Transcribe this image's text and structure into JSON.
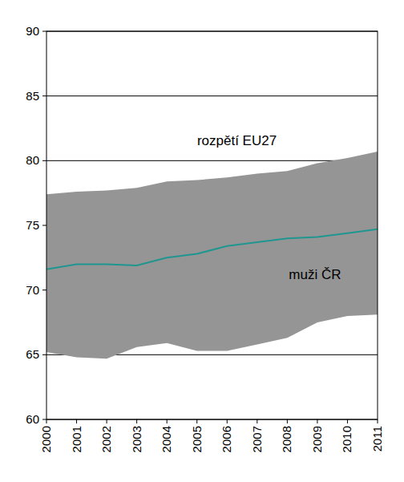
{
  "chart_data": {
    "type": "line",
    "x": [
      2000,
      2001,
      2002,
      2003,
      2004,
      2005,
      2006,
      2007,
      2008,
      2009,
      2010,
      2011
    ],
    "xlim": [
      2000,
      2011
    ],
    "xticks": [
      2000,
      2001,
      2002,
      2003,
      2004,
      2005,
      2006,
      2007,
      2008,
      2009,
      2010,
      2011
    ],
    "ylim": [
      60,
      90
    ],
    "yticks": [
      60,
      65,
      70,
      75,
      80,
      85,
      90
    ],
    "grid": true,
    "series": [
      {
        "name": "rozpětí EU27",
        "type": "area_range",
        "color": "#959595",
        "low": [
          65.2,
          64.8,
          64.7,
          65.6,
          65.9,
          65.3,
          65.3,
          65.8,
          66.3,
          67.5,
          68.0,
          68.1
        ],
        "high": [
          77.4,
          77.6,
          77.7,
          77.9,
          78.4,
          78.5,
          78.7,
          79.0,
          79.2,
          79.8,
          80.2,
          80.7
        ]
      },
      {
        "name": "muži ČR",
        "type": "line",
        "color": "#1f9690",
        "values": [
          71.6,
          72.0,
          72.0,
          71.9,
          72.5,
          72.8,
          73.4,
          73.7,
          74.0,
          74.1,
          74.4,
          74.7
        ]
      }
    ]
  }
}
